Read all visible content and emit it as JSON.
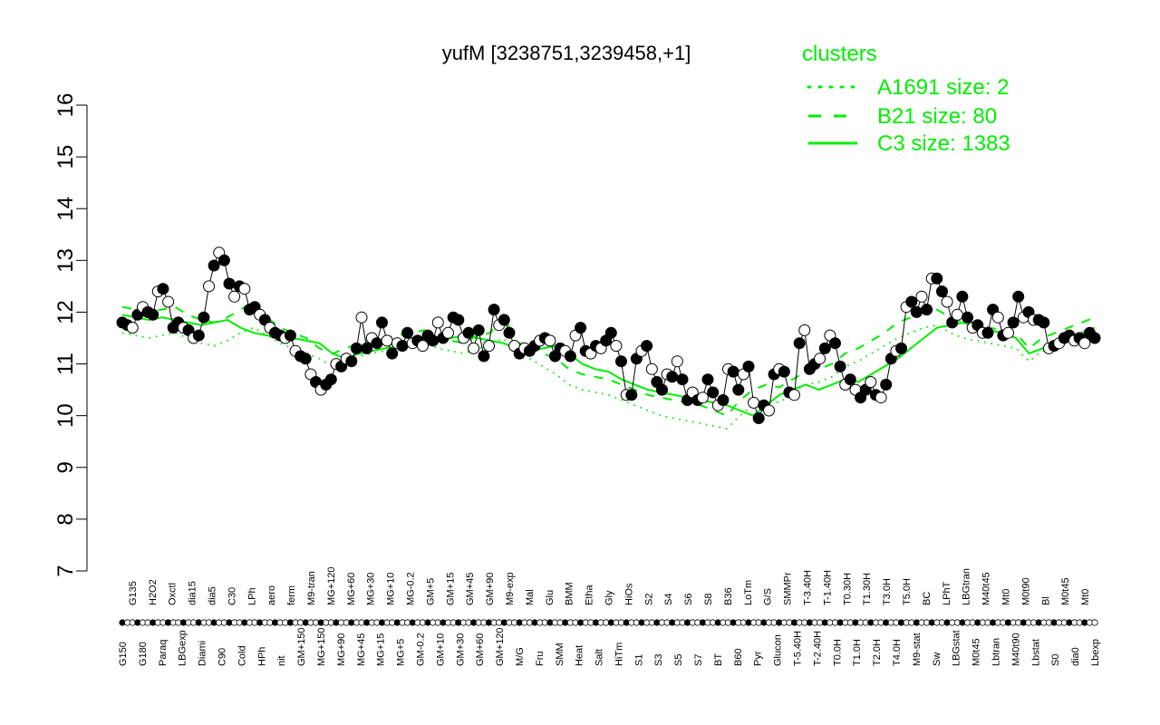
{
  "chart_data": {
    "type": "line",
    "title": "yufM [3238751,3239458,+1]",
    "xlabel": "",
    "ylabel": "",
    "ylim": [
      7,
      16
    ],
    "yticks": [
      7,
      8,
      9,
      10,
      11,
      12,
      13,
      14,
      15,
      16
    ],
    "grid": false,
    "legend_position": "top-right",
    "legend": {
      "title": "clusters",
      "color": "#00ee00",
      "entries": [
        {
          "label": "A1691 size: 2",
          "style": "dotted"
        },
        {
          "label": "B21 size: 80",
          "style": "dashed"
        },
        {
          "label": "C3 size: 1383",
          "style": "solid"
        }
      ]
    },
    "x_labels": [
      "G150",
      "G135",
      "G180",
      "H2O2",
      "Paraq",
      "Oxctl",
      "LBGexp",
      "dia15",
      "Diami",
      "dia5",
      "C90",
      "C30",
      "Cold",
      "LPh",
      "HPh",
      "aero",
      "nit",
      "ferm",
      "GM+150",
      "M9-tran",
      "MG+150",
      "MG+120",
      "MG+90",
      "MG+60",
      "MG+45",
      "MG+30",
      "MG+15",
      "MG+10",
      "MG+5",
      "MG-0.2",
      "GM-0.2",
      "GM+5",
      "GM+10",
      "GM+15",
      "GM+30",
      "GM+45",
      "GM+60",
      "GM+90",
      "GM+120",
      "M9-exp",
      "M/G",
      "Mal",
      "Fru",
      "Glu",
      "SMM",
      "BMM",
      "Heat",
      "Etha",
      "Salt",
      "Gly",
      "HiTm",
      "HiOs",
      "S1",
      "S2",
      "S3",
      "S4",
      "S5",
      "S6",
      "S7",
      "S8",
      "BT",
      "B36",
      "B60",
      "LoTm",
      "Pyr",
      "G/S",
      "Glucon",
      "SMMPr",
      "T-5.40H",
      "T-3.40H",
      "T-2.40H",
      "T-1.40H",
      "T0.0H",
      "T0.30H",
      "T1.0H",
      "T1.30H",
      "T2.0H",
      "T3.0H",
      "T4.0H",
      "T5.0H",
      "M9-stat",
      "BC",
      "Sw",
      "LPhT",
      "LBGstat",
      "LBGtran",
      "M0t45",
      "M40t45",
      "Lbtran",
      "Mt0",
      "M40t90",
      "M0t90",
      "Lbstat",
      "Bl",
      "S0",
      "M0t45",
      "dia0",
      "Mt0",
      "Lbexp"
    ],
    "points": [
      11.8,
      11.75,
      11.7,
      11.95,
      12.1,
      12.0,
      11.95,
      12.4,
      12.45,
      12.2,
      11.7,
      11.8,
      11.7,
      11.65,
      11.5,
      11.55,
      11.9,
      12.5,
      12.9,
      13.15,
      13.0,
      12.55,
      12.3,
      12.5,
      12.45,
      12.05,
      12.1,
      11.95,
      11.85,
      11.7,
      11.6,
      11.55,
      11.5,
      11.55,
      11.25,
      11.15,
      11.1,
      10.8,
      10.65,
      10.5,
      10.6,
      10.7,
      11.0,
      10.95,
      11.1,
      11.05,
      11.3,
      11.9,
      11.3,
      11.5,
      11.4,
      11.8,
      11.45,
      11.2,
      11.4,
      11.35,
      11.6,
      11.4,
      11.45,
      11.35,
      11.55,
      11.45,
      11.8,
      11.5,
      11.6,
      11.9,
      11.85,
      11.5,
      11.6,
      11.3,
      11.65,
      11.15,
      11.35,
      12.05,
      11.75,
      11.85,
      11.6,
      11.35,
      11.2,
      11.3,
      11.25,
      11.35,
      11.45,
      11.5,
      11.45,
      11.15,
      11.3,
      11.25,
      11.15,
      11.55,
      11.7,
      11.25,
      11.2,
      11.35,
      11.3,
      11.45,
      11.6,
      11.35,
      11.05,
      10.4,
      10.4,
      11.1,
      11.25,
      11.35,
      10.9,
      10.65,
      10.5,
      10.8,
      10.75,
      11.05,
      10.7,
      10.3,
      10.45,
      10.3,
      10.35,
      10.7,
      10.45,
      10.2,
      10.3,
      10.9,
      10.85,
      10.5,
      10.8,
      10.95,
      10.25,
      9.95,
      10.2,
      10.1,
      10.8,
      10.9,
      10.85,
      10.45,
      10.4,
      11.4,
      11.65,
      10.9,
      11.0,
      11.1,
      11.3,
      11.55,
      11.4,
      10.95,
      10.6,
      10.7,
      10.5,
      10.35,
      10.5,
      10.65,
      10.4,
      10.35,
      10.6,
      11.1,
      11.25,
      11.3,
      12.1,
      12.2,
      12.0,
      12.3,
      12.05,
      12.65,
      12.65,
      12.4,
      12.2,
      11.8,
      11.95,
      12.3,
      11.9,
      11.7,
      11.75,
      11.6,
      11.6,
      12.05,
      11.9,
      11.55,
      11.6,
      11.8,
      12.3,
      11.9,
      12.0,
      11.85,
      11.85,
      11.8,
      11.3,
      11.35,
      11.4,
      11.5,
      11.55,
      11.45,
      11.5,
      11.4,
      11.6,
      11.5
    ],
    "cluster_C3": [
      11.95,
      11.9,
      11.85,
      11.9,
      11.85,
      11.8,
      11.75,
      11.8,
      11.85,
      11.7,
      11.6,
      11.55,
      11.55,
      11.5,
      11.45,
      11.4,
      11.2,
      11.1,
      11.2,
      11.25,
      11.3,
      11.35,
      11.4,
      11.45,
      11.45,
      11.5,
      11.55,
      11.5,
      11.45,
      11.4,
      11.3,
      11.25,
      11.3,
      11.35,
      11.2,
      11.0,
      10.9,
      10.85,
      10.7,
      10.6,
      10.5,
      10.45,
      10.4,
      10.35,
      10.3,
      10.25,
      10.2,
      10.1,
      10.0,
      10.2,
      10.4,
      10.5,
      10.6,
      10.5,
      10.6,
      10.7,
      10.65,
      10.8,
      10.95,
      11.1,
      11.3,
      11.5,
      11.7,
      11.75,
      11.8,
      11.7,
      11.65,
      11.6,
      11.5,
      11.2,
      11.3,
      11.4,
      11.5,
      11.6,
      11.7
    ],
    "cluster_B21": [
      12.1,
      12.05,
      12.0,
      12.05,
      12.1,
      11.95,
      11.85,
      11.8,
      11.9,
      12.05,
      12.2,
      11.9,
      11.7,
      11.6,
      11.5,
      11.3,
      11.2,
      11.3,
      11.4,
      11.45,
      11.5,
      11.55,
      11.6,
      11.65,
      11.5,
      11.45,
      11.4,
      11.55,
      11.6,
      11.95,
      11.4,
      11.4,
      11.2,
      11.1,
      10.9,
      10.8,
      10.75,
      10.7,
      10.6,
      10.5,
      10.4,
      10.35,
      10.3,
      10.25,
      10.2,
      10.1,
      10.0,
      10.3,
      10.5,
      10.6,
      10.55,
      10.7,
      10.85,
      10.9,
      11.0,
      11.2,
      11.3,
      11.45,
      11.6,
      11.8,
      11.9,
      12.0,
      12.05,
      11.9,
      11.8,
      11.75,
      11.7,
      11.65,
      11.6,
      11.3,
      11.5,
      11.6,
      11.7,
      11.8,
      11.9
    ],
    "cluster_A1691": [
      11.6,
      11.55,
      11.5,
      11.55,
      11.6,
      11.5,
      11.4,
      11.35,
      11.45,
      11.6,
      11.7,
      11.55,
      11.4,
      11.3,
      11.2,
      11.1,
      10.95,
      11.0,
      11.15,
      11.2,
      11.25,
      11.3,
      11.35,
      11.4,
      11.3,
      11.25,
      11.2,
      11.3,
      11.35,
      11.5,
      11.15,
      11.1,
      10.95,
      10.8,
      10.6,
      10.5,
      10.45,
      10.4,
      10.3,
      10.2,
      10.1,
      10.0,
      9.95,
      9.9,
      9.85,
      9.8,
      9.75,
      10.0,
      10.2,
      10.3,
      10.25,
      10.45,
      10.6,
      10.65,
      10.75,
      10.95,
      11.05,
      11.2,
      11.35,
      11.5,
      11.6,
      11.7,
      11.75,
      11.6,
      11.5,
      11.45,
      11.4,
      11.35,
      11.3,
      11.05,
      11.25,
      11.35,
      11.45,
      11.55,
      11.65
    ]
  }
}
